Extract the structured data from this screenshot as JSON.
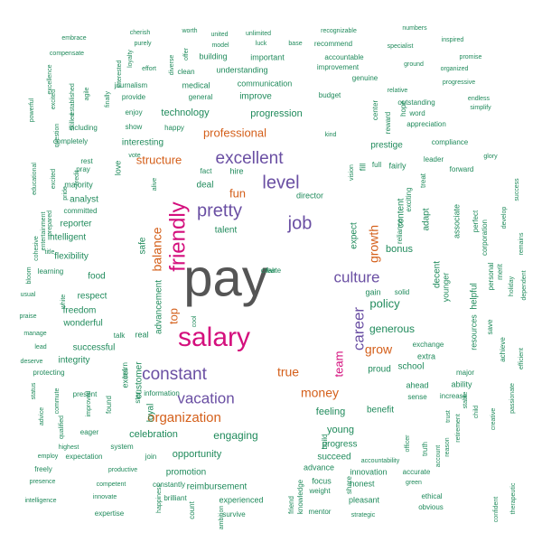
{
  "colors": {
    "big": "#555555",
    "magenta": "#d40f7d",
    "purple": "#6a4fa3",
    "orange": "#d45f1a",
    "green": "#1f8a5b"
  },
  "words": [
    {
      "t": "pay",
      "c": "big"
    },
    {
      "t": "salary",
      "c": "magenta"
    },
    {
      "t": "friendly",
      "c": "magenta"
    },
    {
      "t": "excellent",
      "c": "purple"
    },
    {
      "t": "pretty",
      "c": "purple"
    },
    {
      "t": "level",
      "c": "purple"
    },
    {
      "t": "job",
      "c": "purple"
    },
    {
      "t": "culture",
      "c": "purple"
    },
    {
      "t": "constant",
      "c": "purple"
    },
    {
      "t": "vacation",
      "c": "purple"
    },
    {
      "t": "career",
      "c": "purple"
    },
    {
      "t": "professional",
      "c": "orange"
    },
    {
      "t": "structure",
      "c": "orange"
    },
    {
      "t": "fun",
      "c": "orange"
    },
    {
      "t": "balance",
      "c": "orange"
    },
    {
      "t": "top",
      "c": "orange"
    },
    {
      "t": "growth",
      "c": "orange"
    },
    {
      "t": "grow",
      "c": "orange"
    },
    {
      "t": "true",
      "c": "orange"
    },
    {
      "t": "money",
      "c": "orange"
    },
    {
      "t": "organization",
      "c": "orange"
    },
    {
      "t": "team",
      "c": "magenta"
    },
    {
      "t": "technology",
      "c": "green"
    },
    {
      "t": "progression",
      "c": "green"
    },
    {
      "t": "interesting",
      "c": "green"
    },
    {
      "t": "improve",
      "c": "green"
    },
    {
      "t": "communication",
      "c": "green"
    },
    {
      "t": "understanding",
      "c": "green"
    },
    {
      "t": "important",
      "c": "green"
    },
    {
      "t": "building",
      "c": "green"
    },
    {
      "t": "medical",
      "c": "green"
    },
    {
      "t": "general",
      "c": "green"
    },
    {
      "t": "journalism",
      "c": "green"
    },
    {
      "t": "provide",
      "c": "green"
    },
    {
      "t": "enjoy",
      "c": "green"
    },
    {
      "t": "happy",
      "c": "green"
    },
    {
      "t": "show",
      "c": "green"
    },
    {
      "t": "including",
      "c": "green"
    },
    {
      "t": "completely",
      "c": "green"
    },
    {
      "t": "effort",
      "c": "green"
    },
    {
      "t": "clean",
      "c": "green"
    },
    {
      "t": "worth",
      "c": "green"
    },
    {
      "t": "cherish",
      "c": "green"
    },
    {
      "t": "purely",
      "c": "green"
    },
    {
      "t": "diverse",
      "c": "green"
    },
    {
      "t": "offer",
      "c": "green"
    },
    {
      "t": "united",
      "c": "green"
    },
    {
      "t": "model",
      "c": "green"
    },
    {
      "t": "unlimited",
      "c": "green"
    },
    {
      "t": "luck",
      "c": "green"
    },
    {
      "t": "base",
      "c": "green"
    },
    {
      "t": "recognizable",
      "c": "green"
    },
    {
      "t": "recommend",
      "c": "green"
    },
    {
      "t": "numbers",
      "c": "green"
    },
    {
      "t": "inspired",
      "c": "green"
    },
    {
      "t": "specialist",
      "c": "green"
    },
    {
      "t": "accountable",
      "c": "green"
    },
    {
      "t": "improvement",
      "c": "green"
    },
    {
      "t": "ground",
      "c": "green"
    },
    {
      "t": "promise",
      "c": "green"
    },
    {
      "t": "organized",
      "c": "green"
    },
    {
      "t": "genuine",
      "c": "green"
    },
    {
      "t": "progressive",
      "c": "green"
    },
    {
      "t": "budget",
      "c": "green"
    },
    {
      "t": "relative",
      "c": "green"
    },
    {
      "t": "endless",
      "c": "green"
    },
    {
      "t": "simplify",
      "c": "green"
    },
    {
      "t": "outstanding",
      "c": "green"
    },
    {
      "t": "word",
      "c": "green"
    },
    {
      "t": "appreciation",
      "c": "green"
    },
    {
      "t": "center",
      "c": "green"
    },
    {
      "t": "reward",
      "c": "green"
    },
    {
      "t": "hope",
      "c": "green"
    },
    {
      "t": "kind",
      "c": "green"
    },
    {
      "t": "prestige",
      "c": "green"
    },
    {
      "t": "compliance",
      "c": "green"
    },
    {
      "t": "leader",
      "c": "green"
    },
    {
      "t": "glory",
      "c": "green"
    },
    {
      "t": "forward",
      "c": "green"
    },
    {
      "t": "full",
      "c": "green"
    },
    {
      "t": "fairly",
      "c": "green"
    },
    {
      "t": "embrace",
      "c": "green"
    },
    {
      "t": "compensate",
      "c": "green"
    },
    {
      "t": "excellence",
      "c": "green"
    },
    {
      "t": "loyalty",
      "c": "green"
    },
    {
      "t": "powerful",
      "c": "green"
    },
    {
      "t": "excited",
      "c": "green"
    },
    {
      "t": "established",
      "c": "green"
    },
    {
      "t": "agile",
      "c": "green"
    },
    {
      "t": "finally",
      "c": "green"
    },
    {
      "t": "interested",
      "c": "green"
    },
    {
      "t": "question",
      "c": "green"
    },
    {
      "t": "skilled",
      "c": "green"
    },
    {
      "t": "educational",
      "c": "green"
    },
    {
      "t": "rest",
      "c": "green"
    },
    {
      "t": "pray",
      "c": "green"
    },
    {
      "t": "love",
      "c": "green"
    },
    {
      "t": "vote",
      "c": "green"
    },
    {
      "t": "credit",
      "c": "green"
    },
    {
      "t": "excited",
      "c": "green"
    },
    {
      "t": "pride",
      "c": "green"
    },
    {
      "t": "majority",
      "c": "green"
    },
    {
      "t": "analyst",
      "c": "green"
    },
    {
      "t": "committed",
      "c": "green"
    },
    {
      "t": "reporter",
      "c": "green"
    },
    {
      "t": "intelligent",
      "c": "green"
    },
    {
      "t": "flexibility",
      "c": "green"
    },
    {
      "t": "food",
      "c": "green"
    },
    {
      "t": "learning",
      "c": "green"
    },
    {
      "t": "respect",
      "c": "green"
    },
    {
      "t": "freedom",
      "c": "green"
    },
    {
      "t": "wonderful",
      "c": "green"
    },
    {
      "t": "successful",
      "c": "green"
    },
    {
      "t": "integrity",
      "c": "green"
    },
    {
      "t": "protecting",
      "c": "green"
    },
    {
      "t": "cohesive",
      "c": "green"
    },
    {
      "t": "entertainment",
      "c": "green"
    },
    {
      "t": "prepared",
      "c": "green"
    },
    {
      "t": "title",
      "c": "green"
    },
    {
      "t": "bloom",
      "c": "green"
    },
    {
      "t": "usual",
      "c": "green"
    },
    {
      "t": "white",
      "c": "green"
    },
    {
      "t": "praise",
      "c": "green"
    },
    {
      "t": "manage",
      "c": "green"
    },
    {
      "t": "lead",
      "c": "green"
    },
    {
      "t": "deserve",
      "c": "green"
    },
    {
      "t": "status",
      "c": "green"
    },
    {
      "t": "advice",
      "c": "green"
    },
    {
      "t": "commute",
      "c": "green"
    },
    {
      "t": "qualified",
      "c": "green"
    },
    {
      "t": "improved",
      "c": "green"
    },
    {
      "t": "present",
      "c": "green"
    },
    {
      "t": "eager",
      "c": "green"
    },
    {
      "t": "highest",
      "c": "green"
    },
    {
      "t": "employ",
      "c": "green"
    },
    {
      "t": "freely",
      "c": "green"
    },
    {
      "t": "presence",
      "c": "green"
    },
    {
      "t": "intelligence",
      "c": "green"
    },
    {
      "t": "expectation",
      "c": "green"
    },
    {
      "t": "productive",
      "c": "green"
    },
    {
      "t": "competent",
      "c": "green"
    },
    {
      "t": "innovate",
      "c": "green"
    },
    {
      "t": "expertise",
      "c": "green"
    },
    {
      "t": "happiness",
      "c": "green"
    },
    {
      "t": "alive",
      "c": "green"
    },
    {
      "t": "safe",
      "c": "green"
    },
    {
      "t": "advancement",
      "c": "green"
    },
    {
      "t": "real",
      "c": "green"
    },
    {
      "t": "talk",
      "c": "green"
    },
    {
      "t": "cool",
      "c": "green"
    },
    {
      "t": "fact",
      "c": "green"
    },
    {
      "t": "deal",
      "c": "green"
    },
    {
      "t": "hire",
      "c": "green"
    },
    {
      "t": "talent",
      "c": "green"
    },
    {
      "t": "director",
      "c": "green"
    },
    {
      "t": "vision",
      "c": "green"
    },
    {
      "t": "fill",
      "c": "green"
    },
    {
      "t": "expect",
      "c": "green"
    },
    {
      "t": "content",
      "c": "green"
    },
    {
      "t": "exciting",
      "c": "green"
    },
    {
      "t": "treat",
      "c": "green"
    },
    {
      "t": "adapt",
      "c": "green"
    },
    {
      "t": "associate",
      "c": "green"
    },
    {
      "t": "perfect",
      "c": "green"
    },
    {
      "t": "corporation",
      "c": "green"
    },
    {
      "t": "develop",
      "c": "green"
    },
    {
      "t": "success",
      "c": "green"
    },
    {
      "t": "remains",
      "c": "green"
    },
    {
      "t": "reliance",
      "c": "green"
    },
    {
      "t": "bonus",
      "c": "green"
    },
    {
      "t": "decent",
      "c": "green"
    },
    {
      "t": "helpful",
      "c": "green"
    },
    {
      "t": "personal",
      "c": "green"
    },
    {
      "t": "merit",
      "c": "green"
    },
    {
      "t": "holiday",
      "c": "green"
    },
    {
      "t": "dependent",
      "c": "green"
    },
    {
      "t": "younger",
      "c": "green"
    },
    {
      "t": "gain",
      "c": "green"
    },
    {
      "t": "solid",
      "c": "green"
    },
    {
      "t": "policy",
      "c": "green"
    },
    {
      "t": "generous",
      "c": "green"
    },
    {
      "t": "resources",
      "c": "green"
    },
    {
      "t": "save",
      "c": "green"
    },
    {
      "t": "achieve",
      "c": "green"
    },
    {
      "t": "efficient",
      "c": "green"
    },
    {
      "t": "exchange",
      "c": "green"
    },
    {
      "t": "extra",
      "c": "green"
    },
    {
      "t": "school",
      "c": "green"
    },
    {
      "t": "proud",
      "c": "green"
    },
    {
      "t": "major",
      "c": "green"
    },
    {
      "t": "ability",
      "c": "green"
    },
    {
      "t": "increase",
      "c": "green"
    },
    {
      "t": "ahead",
      "c": "green"
    },
    {
      "t": "sense",
      "c": "green"
    },
    {
      "t": "stable",
      "c": "green"
    },
    {
      "t": "trust",
      "c": "green"
    },
    {
      "t": "benefit",
      "c": "green"
    },
    {
      "t": "feeling",
      "c": "green"
    },
    {
      "t": "young",
      "c": "green"
    },
    {
      "t": "progress",
      "c": "green"
    },
    {
      "t": "succeed",
      "c": "green"
    },
    {
      "t": "advance",
      "c": "green"
    },
    {
      "t": "focus",
      "c": "green"
    },
    {
      "t": "weight",
      "c": "green"
    },
    {
      "t": "mentor",
      "c": "green"
    },
    {
      "t": "share",
      "c": "green"
    },
    {
      "t": "innovation",
      "c": "green"
    },
    {
      "t": "honest",
      "c": "green"
    },
    {
      "t": "pleasant",
      "c": "green"
    },
    {
      "t": "strategic",
      "c": "green"
    },
    {
      "t": "accountability",
      "c": "green"
    },
    {
      "t": "officer",
      "c": "green"
    },
    {
      "t": "truth",
      "c": "green"
    },
    {
      "t": "account",
      "c": "green"
    },
    {
      "t": "reason",
      "c": "green"
    },
    {
      "t": "retirement",
      "c": "green"
    },
    {
      "t": "child",
      "c": "green"
    },
    {
      "t": "creative",
      "c": "green"
    },
    {
      "t": "passionate",
      "c": "green"
    },
    {
      "t": "accurate",
      "c": "green"
    },
    {
      "t": "green",
      "c": "green"
    },
    {
      "t": "ethical",
      "c": "green"
    },
    {
      "t": "obvious",
      "c": "green"
    },
    {
      "t": "confident",
      "c": "green"
    },
    {
      "t": "therapeutic",
      "c": "green"
    },
    {
      "t": "engaging",
      "c": "green"
    },
    {
      "t": "celebration",
      "c": "green"
    },
    {
      "t": "opportunity",
      "c": "green"
    },
    {
      "t": "promotion",
      "c": "green"
    },
    {
      "t": "reimbursement",
      "c": "green"
    },
    {
      "t": "experienced",
      "c": "green"
    },
    {
      "t": "constantly",
      "c": "green"
    },
    {
      "t": "brilliant",
      "c": "green"
    },
    {
      "t": "count",
      "c": "green"
    },
    {
      "t": "ambition",
      "c": "green"
    },
    {
      "t": "survive",
      "c": "green"
    },
    {
      "t": "friend",
      "c": "green"
    },
    {
      "t": "knowledge",
      "c": "green"
    },
    {
      "t": "build",
      "c": "green"
    },
    {
      "t": "system",
      "c": "green"
    },
    {
      "t": "join",
      "c": "green"
    },
    {
      "t": "information",
      "c": "green"
    },
    {
      "t": "loyal",
      "c": "green"
    },
    {
      "t": "star",
      "c": "green"
    },
    {
      "t": "customer",
      "c": "green"
    },
    {
      "t": "excel",
      "c": "green"
    },
    {
      "t": "learn",
      "c": "green"
    },
    {
      "t": "found",
      "c": "green"
    },
    {
      "t": "fair",
      "c": "green"
    },
    {
      "t": "create",
      "c": "green"
    }
  ]
}
